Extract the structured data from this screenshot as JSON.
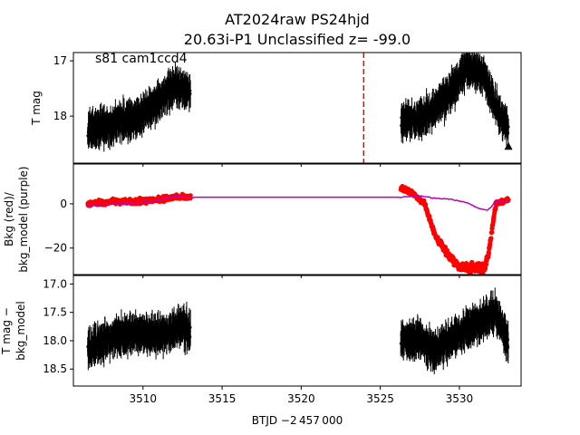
{
  "figure": {
    "title_line1": "AT2024raw  PS24hjd",
    "title_line2": "20.63i-P1 Unclassified z= -99.0",
    "annotation": "s81 cam1ccd4",
    "xlabel": "BTJD −2 457 000"
  },
  "chart_data": [
    {
      "type": "scatter",
      "panel": "top",
      "ylabel": "T mag",
      "ylim": [
        18.85,
        16.85
      ],
      "y_inverted": true,
      "xlim": [
        3505.6,
        3533.9
      ],
      "x_ticks": [
        3510,
        3515,
        3520,
        3525,
        3530
      ],
      "y_ticks": [
        {
          "v": 17,
          "label": "17"
        },
        {
          "v": 18,
          "label": "18"
        }
      ],
      "series": [
        {
          "color": "#000000",
          "marker": "point with error bar",
          "segments": [
            {
              "x": [
                3506.5,
                3508.0,
                3509.5,
                3511.0,
                3512.0,
                3513.0
              ],
              "y": [
                18.25,
                18.15,
                18.05,
                17.75,
                17.45,
                17.55
              ]
            },
            {
              "x": [
                3526.3,
                3527.5,
                3528.5,
                3529.5,
                3530.5,
                3531.5,
                3532.5,
                3533.1
              ],
              "y": [
                18.1,
                18.05,
                17.85,
                17.55,
                17.1,
                17.25,
                17.95,
                18.25
              ]
            }
          ]
        }
      ],
      "upper_limit_marker": {
        "x": 3533.1,
        "y": 18.55,
        "symbol": "triangle-up"
      },
      "vline": {
        "x": 3523.95,
        "color": "#ff0000",
        "style": "dashed"
      }
    },
    {
      "type": "scatter",
      "panel": "middle",
      "ylabel_line1": "Bkg (red)/",
      "ylabel_line2": "bkg_model (purple)",
      "ylim": [
        -32,
        18
      ],
      "xlim": [
        3505.6,
        3533.9
      ],
      "x_ticks": [
        3510,
        3515,
        3520,
        3525,
        3530
      ],
      "y_ticks": [
        {
          "v": 0,
          "label": "0"
        },
        {
          "v": -20,
          "label": "−20"
        }
      ],
      "series": [
        {
          "color": "#ff0000",
          "marker": "point",
          "segments": [
            {
              "x": [
                3506.5,
                3508.0,
                3509.5,
                3511.0,
                3512.0,
                3513.0
              ],
              "y": [
                0,
                1,
                1,
                2,
                3,
                3
              ]
            },
            {
              "x": [
                3526.3,
                3527.0,
                3527.8,
                3528.5,
                3529.2,
                3529.9,
                3530.4,
                3531.6,
                3531.9,
                3532.3,
                3533.1
              ],
              "y": [
                7,
                5,
                0,
                -15,
                -22,
                -28,
                -29,
                -29,
                -20,
                0,
                2
              ]
            }
          ]
        },
        {
          "color": "#bb00bb",
          "marker": "line",
          "segments": [
            {
              "x": [
                3506.5,
                3508.5,
                3510.5,
                3512.0,
                3513.0,
                3526.3,
                3527.5,
                3528.5,
                3529.5,
                3530.5,
                3531.2,
                3531.8,
                3532.3,
                3533.1
              ],
              "y": [
                -0.5,
                0,
                1,
                3.5,
                3,
                3,
                3.5,
                2.5,
                2,
                0.5,
                -2,
                -3,
                1,
                1.5
              ]
            }
          ]
        }
      ]
    },
    {
      "type": "scatter",
      "panel": "bottom",
      "ylabel_line1": "T mag −",
      "ylabel_line2": "bkg_model",
      "ylim": [
        18.8,
        16.85
      ],
      "y_inverted": true,
      "xlim": [
        3505.6,
        3533.9
      ],
      "x_ticks": [
        3510,
        3515,
        3520,
        3525,
        3530
      ],
      "y_ticks": [
        {
          "v": 17.0,
          "label": "17.0"
        },
        {
          "v": 17.5,
          "label": "17.5"
        },
        {
          "v": 18.0,
          "label": "18.0"
        },
        {
          "v": 18.5,
          "label": "18.5"
        }
      ],
      "series": [
        {
          "color": "#000000",
          "marker": "point with error bar",
          "segments": [
            {
              "x": [
                3506.5,
                3508.0,
                3509.5,
                3511.0,
                3512.5,
                3513.0
              ],
              "y": [
                18.15,
                17.95,
                17.85,
                17.9,
                17.75,
                17.85
              ]
            },
            {
              "x": [
                3526.3,
                3527.5,
                3528.5,
                3529.5,
                3530.2,
                3532.3,
                3533.1
              ],
              "y": [
                18.0,
                17.95,
                18.2,
                17.95,
                17.85,
                17.5,
                18.05
              ]
            }
          ]
        }
      ]
    }
  ]
}
